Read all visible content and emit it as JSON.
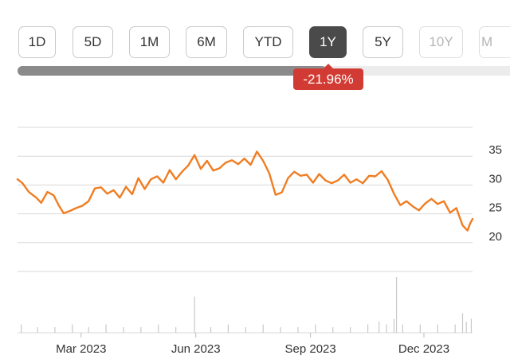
{
  "range_selector": {
    "buttons": [
      {
        "label": "1D",
        "active": false
      },
      {
        "label": "5D",
        "active": false
      },
      {
        "label": "1M",
        "active": false
      },
      {
        "label": "6M",
        "active": false
      },
      {
        "label": "YTD",
        "active": false
      },
      {
        "label": "1Y",
        "active": true
      },
      {
        "label": "5Y",
        "active": false
      },
      {
        "label": "10Y",
        "active": false
      },
      {
        "label": "M",
        "active": false
      }
    ],
    "change_label": "-21.96%",
    "change_color": "#d23b33"
  },
  "chart_data": {
    "type": "line",
    "title": "",
    "xlabel": "",
    "ylabel": "",
    "line_color": "#f07d22",
    "ylim": [
      15,
      40
    ],
    "yticks": [
      20,
      25,
      30,
      35
    ],
    "grid": true,
    "xlim": [
      "2023-01-09",
      "2024-01-09"
    ],
    "xticks": [
      {
        "label": "Mar 2023",
        "date": "2023-03-01"
      },
      {
        "label": "Jun 2023",
        "date": "2023-06-01"
      },
      {
        "label": "Sep 2023",
        "date": "2023-09-01"
      },
      {
        "label": "Dec 2023",
        "date": "2023-12-01"
      }
    ],
    "series": [
      {
        "points": [
          [
            "2023-01-09",
            31.0
          ],
          [
            "2023-01-13",
            30.3
          ],
          [
            "2023-01-18",
            28.8
          ],
          [
            "2023-01-24",
            27.8
          ],
          [
            "2023-01-28",
            26.9
          ],
          [
            "2023-02-02",
            28.8
          ],
          [
            "2023-02-07",
            28.2
          ],
          [
            "2023-02-11",
            26.5
          ],
          [
            "2023-02-15",
            25.1
          ],
          [
            "2023-02-20",
            25.5
          ],
          [
            "2023-02-25",
            26.0
          ],
          [
            "2023-03-02",
            26.4
          ],
          [
            "2023-03-07",
            27.2
          ],
          [
            "2023-03-12",
            29.4
          ],
          [
            "2023-03-17",
            29.6
          ],
          [
            "2023-03-22",
            28.5
          ],
          [
            "2023-03-27",
            29.1
          ],
          [
            "2023-04-01",
            27.8
          ],
          [
            "2023-04-06",
            29.7
          ],
          [
            "2023-04-11",
            28.4
          ],
          [
            "2023-04-16",
            31.2
          ],
          [
            "2023-04-21",
            29.3
          ],
          [
            "2023-04-26",
            31.0
          ],
          [
            "2023-05-01",
            31.5
          ],
          [
            "2023-05-06",
            30.4
          ],
          [
            "2023-05-11",
            32.6
          ],
          [
            "2023-05-16",
            31.0
          ],
          [
            "2023-05-21",
            32.3
          ],
          [
            "2023-05-26",
            33.4
          ],
          [
            "2023-05-31",
            35.2
          ],
          [
            "2023-06-05",
            32.8
          ],
          [
            "2023-06-10",
            34.2
          ],
          [
            "2023-06-15",
            32.5
          ],
          [
            "2023-06-20",
            32.9
          ],
          [
            "2023-06-25",
            33.9
          ],
          [
            "2023-06-30",
            34.3
          ],
          [
            "2023-07-05",
            33.6
          ],
          [
            "2023-07-10",
            34.6
          ],
          [
            "2023-07-15",
            33.5
          ],
          [
            "2023-07-20",
            35.8
          ],
          [
            "2023-07-25",
            34.2
          ],
          [
            "2023-07-30",
            32.0
          ],
          [
            "2023-08-04",
            28.3
          ],
          [
            "2023-08-09",
            28.7
          ],
          [
            "2023-08-14",
            31.2
          ],
          [
            "2023-08-19",
            32.3
          ],
          [
            "2023-08-24",
            31.6
          ],
          [
            "2023-08-29",
            31.8
          ],
          [
            "2023-09-03",
            30.4
          ],
          [
            "2023-09-08",
            31.9
          ],
          [
            "2023-09-13",
            30.8
          ],
          [
            "2023-09-18",
            30.3
          ],
          [
            "2023-09-23",
            30.8
          ],
          [
            "2023-09-28",
            31.8
          ],
          [
            "2023-10-03",
            30.4
          ],
          [
            "2023-10-08",
            31.0
          ],
          [
            "2023-10-13",
            30.3
          ],
          [
            "2023-10-18",
            31.6
          ],
          [
            "2023-10-23",
            31.5
          ],
          [
            "2023-10-28",
            32.4
          ],
          [
            "2023-11-02",
            30.9
          ],
          [
            "2023-11-07",
            28.5
          ],
          [
            "2023-11-12",
            26.5
          ],
          [
            "2023-11-17",
            27.2
          ],
          [
            "2023-11-22",
            26.3
          ],
          [
            "2023-11-27",
            25.6
          ],
          [
            "2023-12-02",
            26.8
          ],
          [
            "2023-12-07",
            27.6
          ],
          [
            "2023-12-12",
            26.7
          ],
          [
            "2023-12-17",
            27.2
          ],
          [
            "2023-12-22",
            25.2
          ],
          [
            "2023-12-27",
            26.0
          ],
          [
            "2024-01-01",
            23.0
          ],
          [
            "2024-01-05",
            22.1
          ],
          [
            "2024-01-07",
            23.3
          ],
          [
            "2024-01-09",
            24.1
          ]
        ]
      }
    ],
    "volume": {
      "color": "#c8c8c8",
      "points": [
        [
          "2023-01-12",
          3
        ],
        [
          "2023-01-25",
          2
        ],
        [
          "2023-02-08",
          2
        ],
        [
          "2023-02-22",
          3
        ],
        [
          "2023-03-07",
          2
        ],
        [
          "2023-03-21",
          3
        ],
        [
          "2023-04-04",
          2
        ],
        [
          "2023-04-18",
          2
        ],
        [
          "2023-05-02",
          3
        ],
        [
          "2023-05-16",
          2
        ],
        [
          "2023-05-31",
          13
        ],
        [
          "2023-06-13",
          2
        ],
        [
          "2023-06-27",
          3
        ],
        [
          "2023-07-11",
          2
        ],
        [
          "2023-07-25",
          3
        ],
        [
          "2023-08-08",
          2
        ],
        [
          "2023-08-22",
          2
        ],
        [
          "2023-09-05",
          3
        ],
        [
          "2023-09-19",
          2
        ],
        [
          "2023-10-03",
          2
        ],
        [
          "2023-10-17",
          3
        ],
        [
          "2023-10-26",
          4
        ],
        [
          "2023-11-01",
          3
        ],
        [
          "2023-11-07",
          5
        ],
        [
          "2023-11-09",
          20
        ],
        [
          "2023-11-14",
          3
        ],
        [
          "2023-11-28",
          3
        ],
        [
          "2023-12-12",
          3
        ],
        [
          "2023-12-26",
          3
        ],
        [
          "2024-01-01",
          7
        ],
        [
          "2024-01-04",
          4
        ],
        [
          "2024-01-08",
          5
        ]
      ]
    }
  }
}
